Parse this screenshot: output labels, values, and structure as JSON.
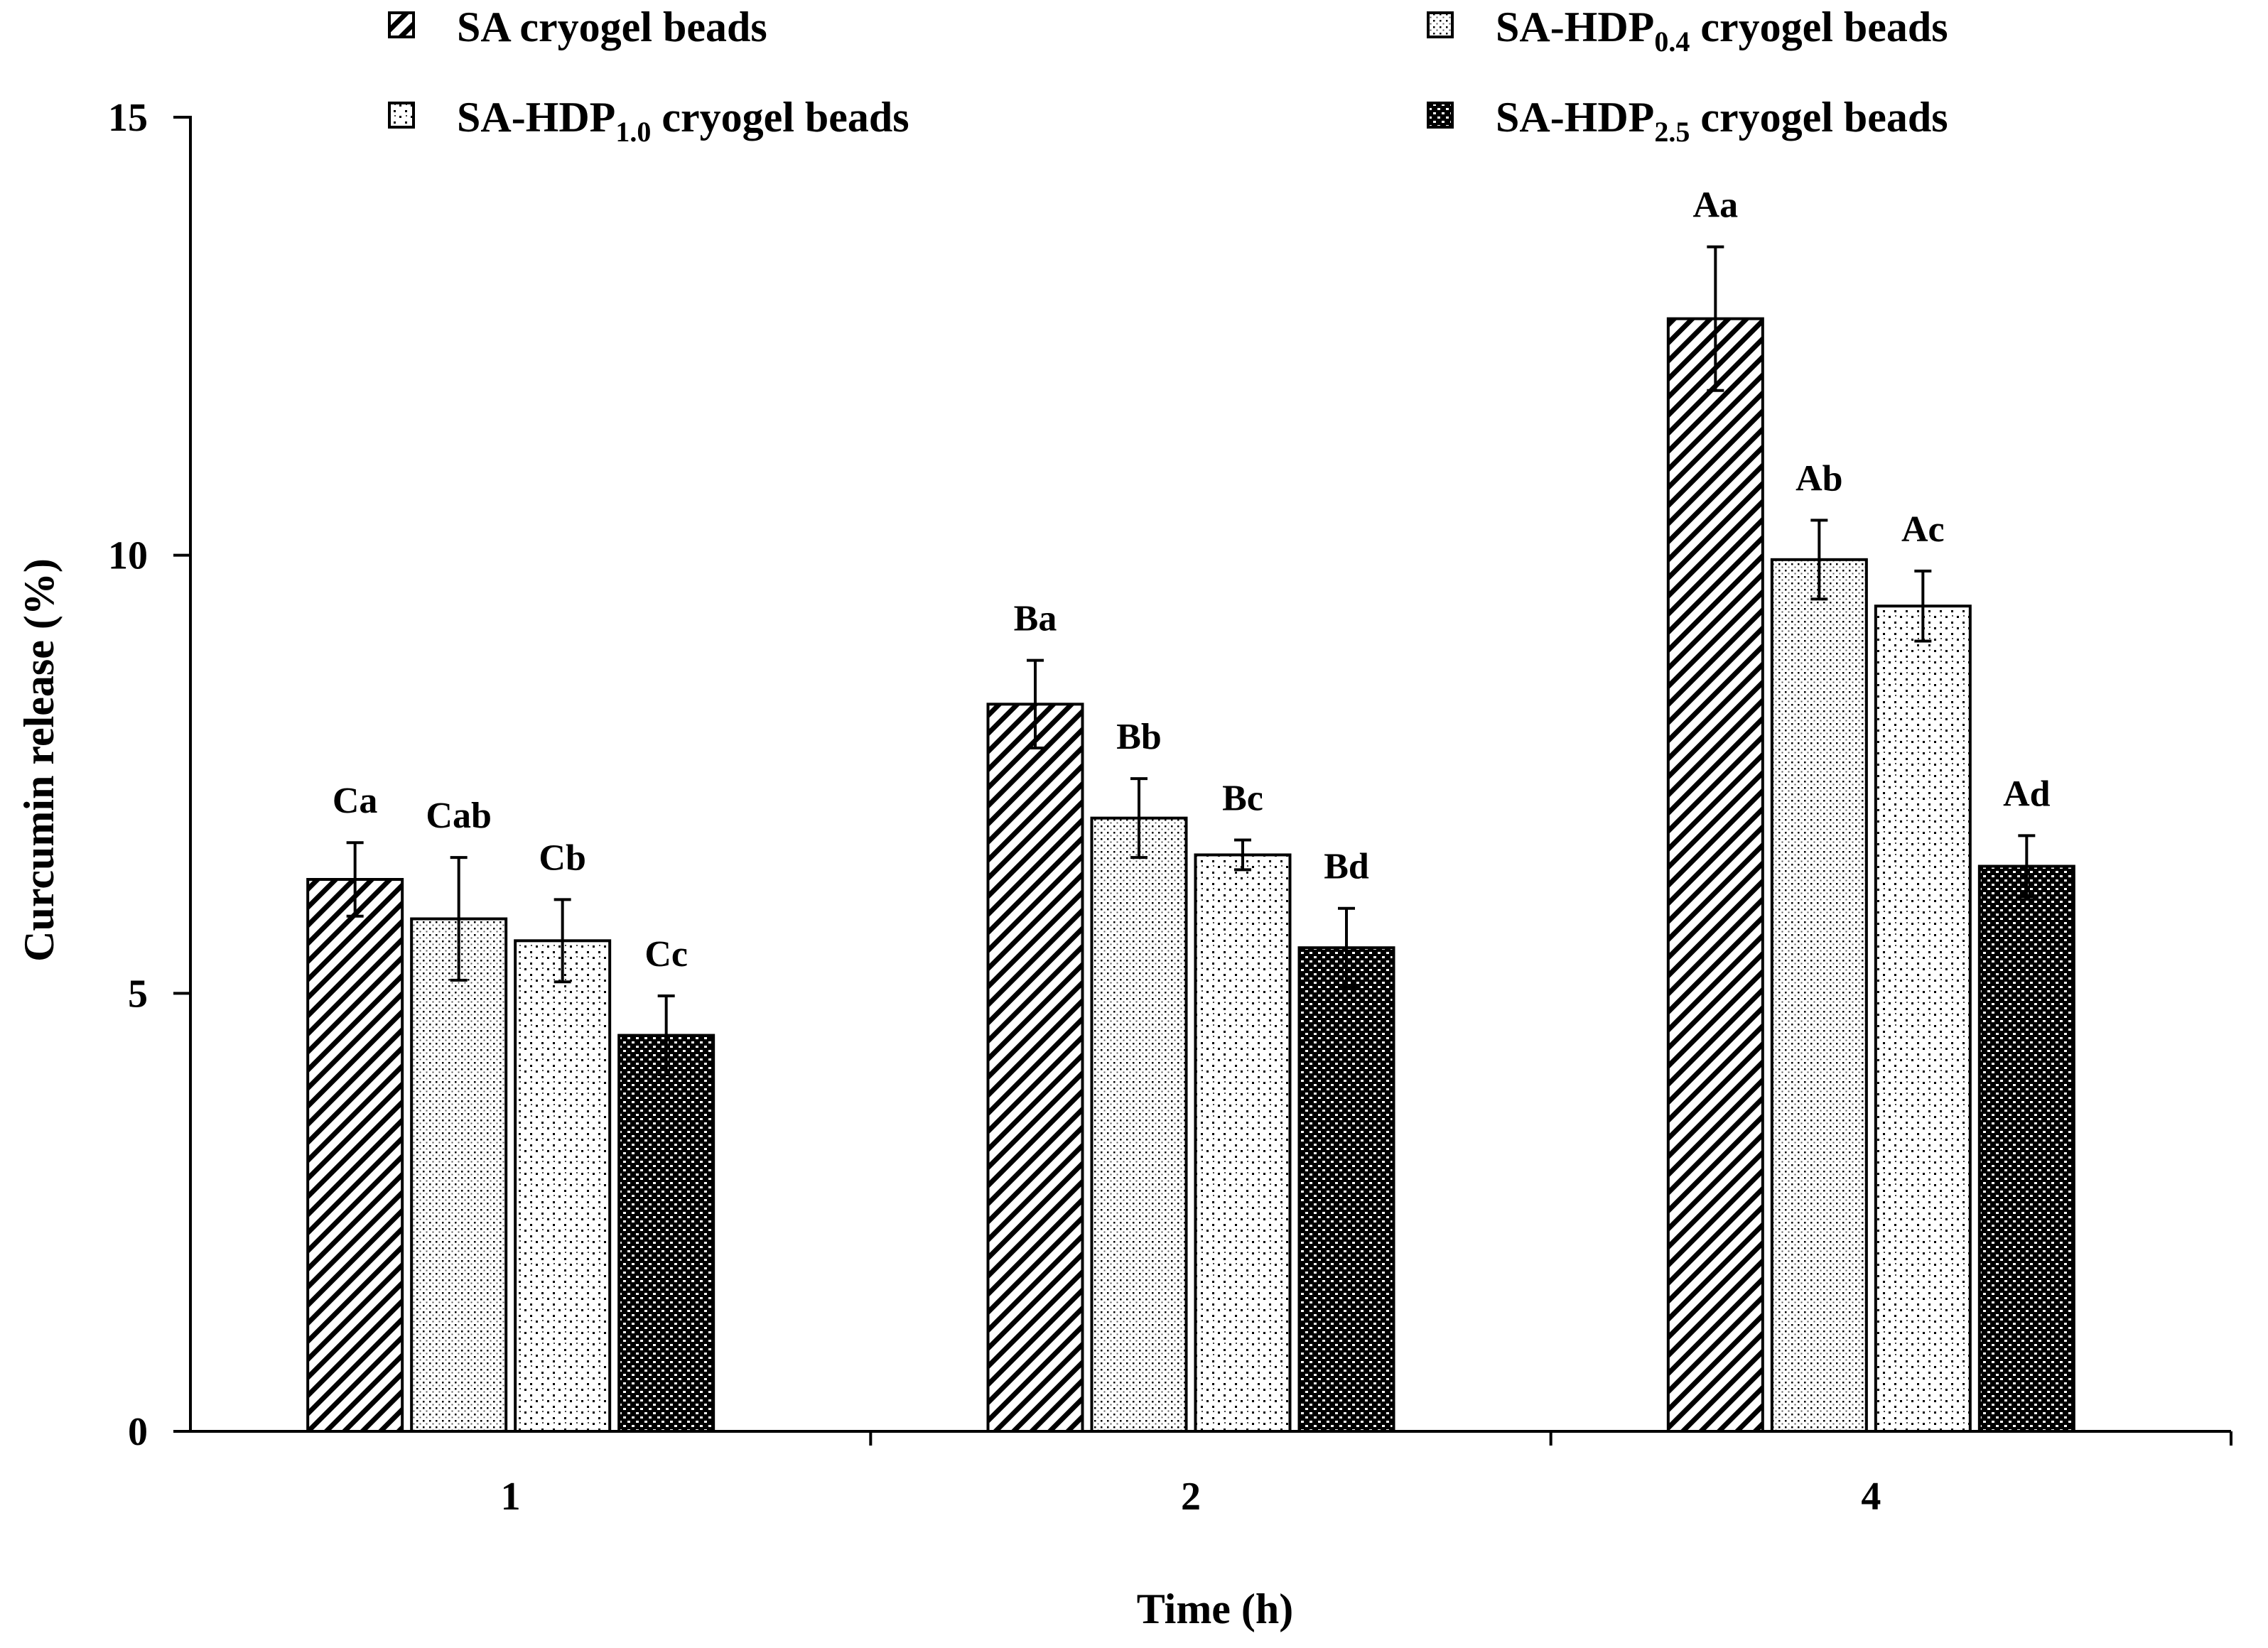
{
  "chart_data": {
    "type": "bar",
    "title": "",
    "xlabel": "Time (h)",
    "ylabel": "Curcumin release (%)",
    "ylim": [
      0,
      15
    ],
    "yticks": [
      0,
      5,
      10,
      15
    ],
    "categories": [
      "1",
      "2",
      "4"
    ],
    "grid": false,
    "legend_position": "top",
    "series": [
      {
        "name": "SA cryogel beads",
        "label_main": "SA cryogel beads",
        "label_sub": "",
        "label_tail": "",
        "pattern": "diagonal-hatch",
        "values": [
          6.3,
          8.3,
          12.7
        ],
        "errors": [
          0.42,
          0.5,
          0.82
        ],
        "letters": [
          "Ca",
          "Ba",
          "Aa"
        ]
      },
      {
        "name": "SA-HDP0.4 cryogel beads",
        "label_main": "SA-HDP",
        "label_sub": "0.4",
        "label_tail": " cryogel beads",
        "pattern": "fine-dots",
        "values": [
          5.85,
          7.0,
          9.95
        ],
        "errors": [
          0.7,
          0.45,
          0.45
        ],
        "letters": [
          "Cab",
          "Bb",
          "Ab"
        ]
      },
      {
        "name": "SA-HDP1.0 cryogel beads",
        "label_main": "SA-HDP",
        "label_sub": "1.0",
        "label_tail": " cryogel beads",
        "pattern": "sparse-dots",
        "values": [
          5.6,
          6.58,
          9.42
        ],
        "errors": [
          0.47,
          0.17,
          0.4
        ],
        "letters": [
          "Cb",
          "Bc",
          "Ac"
        ]
      },
      {
        "name": "SA-HDP2.5 cryogel beads",
        "label_main": "SA-HDP",
        "label_sub": "2.5",
        "label_tail": " cryogel beads",
        "pattern": "dense-checker",
        "values": [
          4.52,
          5.52,
          6.45
        ],
        "errors": [
          0.45,
          0.45,
          0.35
        ],
        "letters": [
          "Cc",
          "Bd",
          "Ad"
        ]
      }
    ]
  }
}
